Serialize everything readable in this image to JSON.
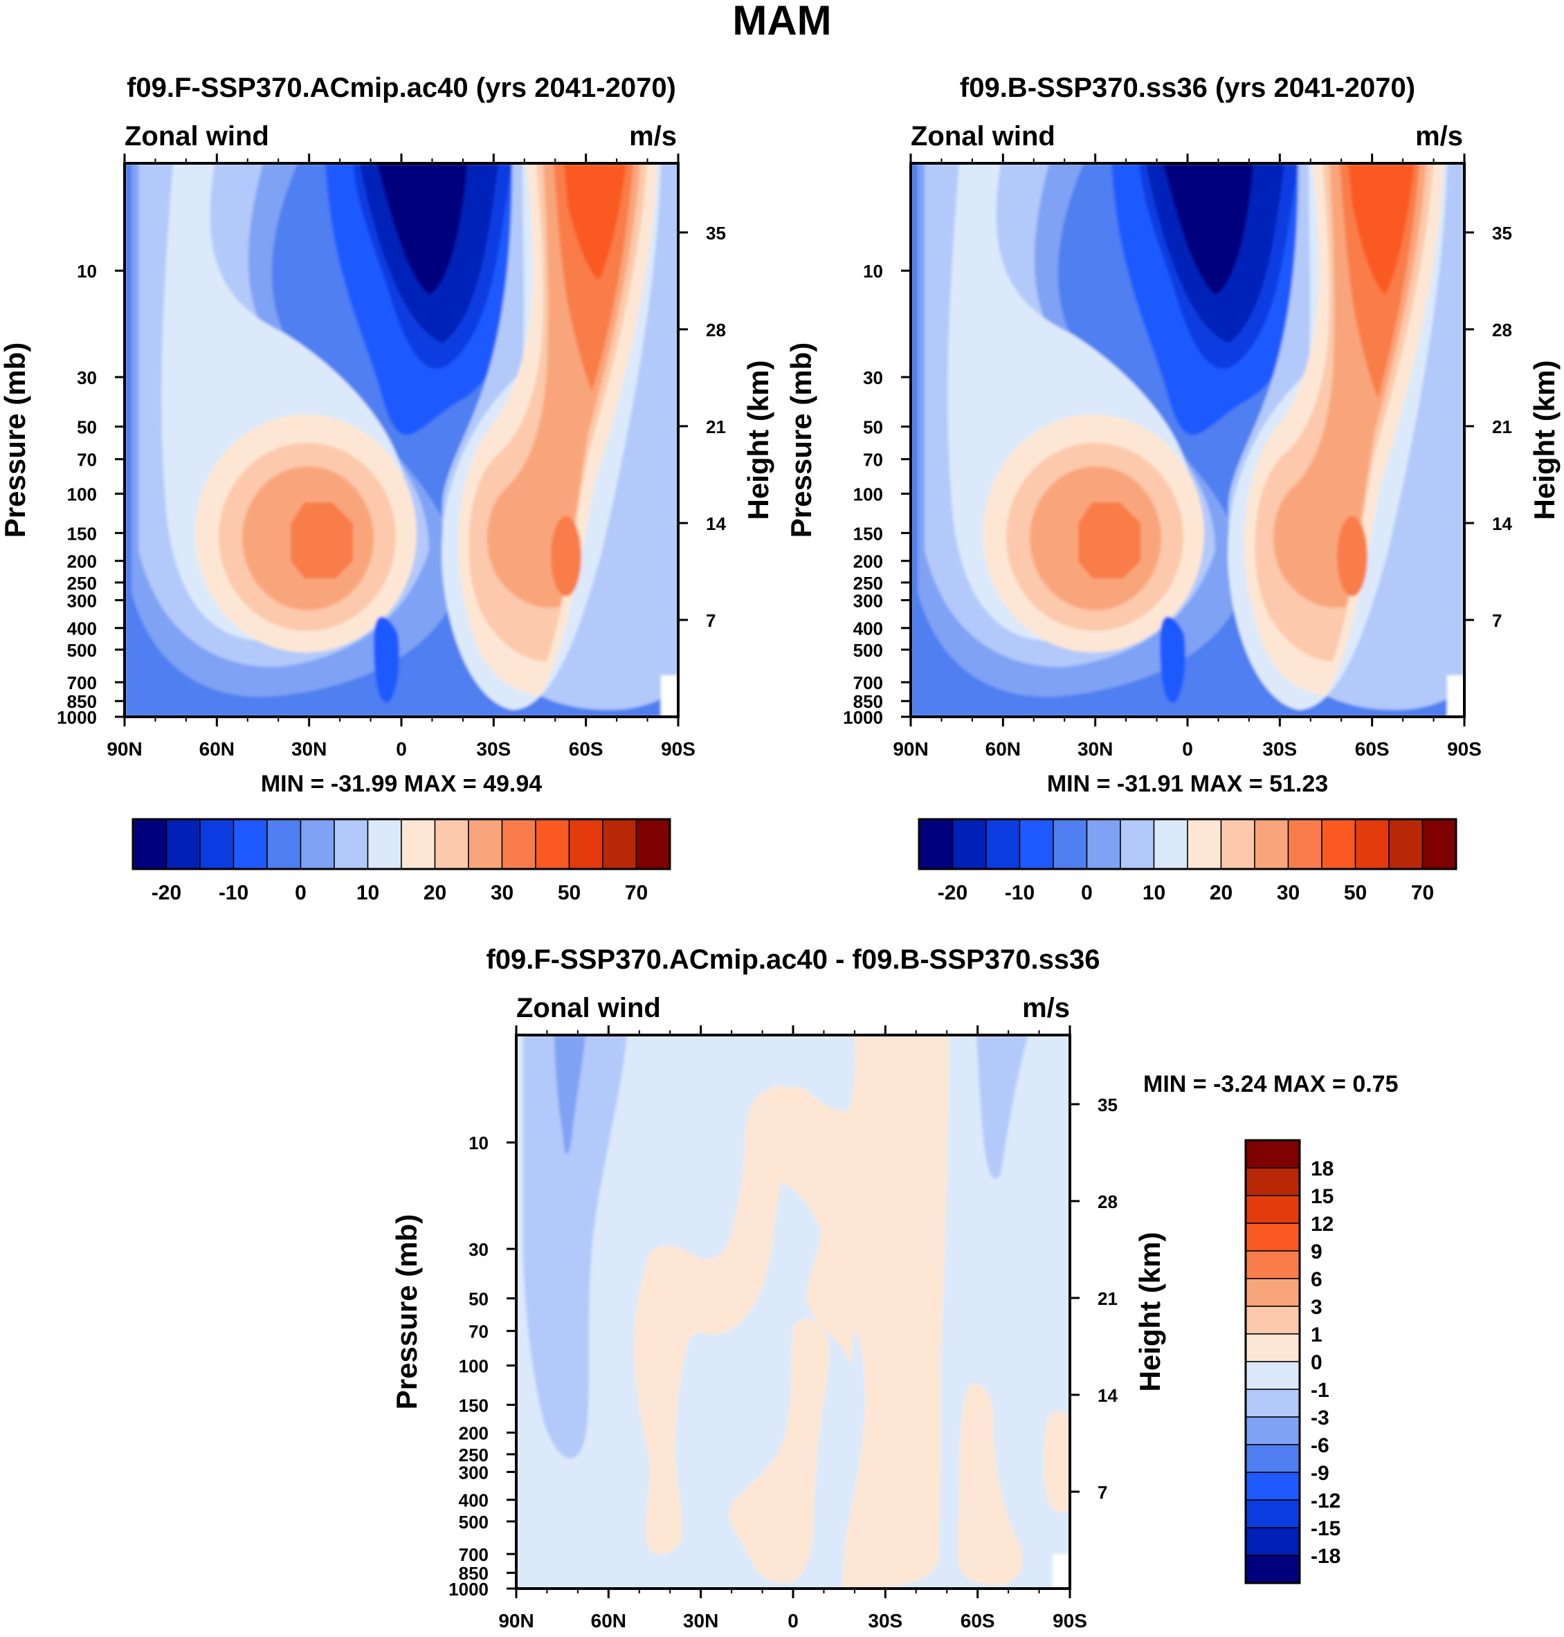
{
  "figure_title": "MAM",
  "chart_data": [
    {
      "type": "contour",
      "title": "f09.F-SSP370.ACmip.ac40 (yrs 2041-2070)",
      "left_label": "Zonal wind",
      "right_label": "m/s",
      "xlabel": "",
      "ylabel": "Pressure (mb)",
      "ylabel_right": "Height (km)",
      "x_ticks": [
        "90N",
        "60N",
        "30N",
        "0",
        "30S",
        "60S",
        "90S"
      ],
      "x_tick_values": [
        90,
        60,
        30,
        0,
        -30,
        -60,
        -90
      ],
      "y_ticks": [
        "10",
        "30",
        "50",
        "70",
        "100",
        "150",
        "200",
        "250",
        "300",
        "400",
        "500",
        "700",
        "850",
        "1000"
      ],
      "y_tick_values": [
        10,
        30,
        50,
        70,
        100,
        150,
        200,
        250,
        300,
        400,
        500,
        700,
        850,
        1000
      ],
      "ylim": [
        3.3,
        1000
      ],
      "y2_ticks": [
        "7",
        "14",
        "21",
        "28",
        "35"
      ],
      "y2_tick_values": [
        7,
        14,
        21,
        28,
        35
      ],
      "stats_text": "MIN = -31.99  MAX =  49.94",
      "colorbar_labels": [
        "-20",
        "-10",
        "0",
        "10",
        "20",
        "30",
        "50",
        "70"
      ],
      "contour_levels": [
        -25,
        -20,
        -15,
        -10,
        -5,
        0,
        5,
        10,
        15,
        20,
        25,
        30,
        40,
        50,
        60,
        70
      ]
    },
    {
      "type": "contour",
      "title": "f09.B-SSP370.ss36 (yrs 2041-2070)",
      "left_label": "Zonal wind",
      "right_label": "m/s",
      "xlabel": "",
      "ylabel": "Pressure (mb)",
      "ylabel_right": "Height (km)",
      "x_ticks": [
        "90N",
        "60N",
        "30N",
        "0",
        "30S",
        "60S",
        "90S"
      ],
      "x_tick_values": [
        90,
        60,
        30,
        0,
        -30,
        -60,
        -90
      ],
      "y_ticks": [
        "10",
        "30",
        "50",
        "70",
        "100",
        "150",
        "200",
        "250",
        "300",
        "400",
        "500",
        "700",
        "850",
        "1000"
      ],
      "y_tick_values": [
        10,
        30,
        50,
        70,
        100,
        150,
        200,
        250,
        300,
        400,
        500,
        700,
        850,
        1000
      ],
      "ylim": [
        3.3,
        1000
      ],
      "y2_ticks": [
        "7",
        "14",
        "21",
        "28",
        "35"
      ],
      "y2_tick_values": [
        7,
        14,
        21,
        28,
        35
      ],
      "stats_text": "MIN = -31.91  MAX =  51.23",
      "colorbar_labels": [
        "-20",
        "-10",
        "0",
        "10",
        "20",
        "30",
        "50",
        "70"
      ],
      "contour_levels": [
        -25,
        -20,
        -15,
        -10,
        -5,
        0,
        5,
        10,
        15,
        20,
        25,
        30,
        40,
        50,
        60,
        70
      ]
    },
    {
      "type": "contour",
      "title": "f09.F-SSP370.ACmip.ac40 - f09.B-SSP370.ss36",
      "left_label": "Zonal wind",
      "right_label": "m/s",
      "xlabel": "",
      "ylabel": "Pressure (mb)",
      "ylabel_right": "Height (km)",
      "x_ticks": [
        "90N",
        "60N",
        "30N",
        "0",
        "30S",
        "60S",
        "90S"
      ],
      "x_tick_values": [
        90,
        60,
        30,
        0,
        -30,
        -60,
        -90
      ],
      "y_ticks": [
        "10",
        "30",
        "50",
        "70",
        "100",
        "150",
        "200",
        "250",
        "300",
        "400",
        "500",
        "700",
        "850",
        "1000"
      ],
      "y_tick_values": [
        10,
        30,
        50,
        70,
        100,
        150,
        200,
        250,
        300,
        400,
        500,
        700,
        850,
        1000
      ],
      "ylim": [
        3.3,
        1000
      ],
      "y2_ticks": [
        "7",
        "14",
        "21",
        "28",
        "35"
      ],
      "y2_tick_values": [
        7,
        14,
        21,
        28,
        35
      ],
      "stats_text": "MIN =  -3.24  MAX =    0.75",
      "colorbar_labels": [
        "18",
        "15",
        "12",
        "9",
        "6",
        "3",
        "1",
        "0",
        "-1",
        "-3",
        "-6",
        "-9",
        "-12",
        "-15",
        "-18"
      ],
      "contour_levels": [
        -18,
        -15,
        -12,
        -9,
        -6,
        -3,
        -1,
        0,
        1,
        3,
        6,
        9,
        12,
        15,
        18
      ]
    }
  ],
  "colors": {
    "wind_scale": [
      "#00007f",
      "#0020b8",
      "#0a3ce0",
      "#1e5aff",
      "#4f7ff0",
      "#7fa2f5",
      "#b2c9fa",
      "#dce9fb",
      "#fde7d4",
      "#fcc9ac",
      "#f9a57c",
      "#f97d4a",
      "#fa5a22",
      "#e33b0b",
      "#b82807",
      "#7f0000"
    ],
    "diff_scale_top_to_bottom": [
      "#7f0000",
      "#b82807",
      "#e33b0b",
      "#fa5a22",
      "#f97d4a",
      "#f9a57c",
      "#fcc9ac",
      "#fde7d4",
      "#dce9fb",
      "#b2c9fa",
      "#7fa2f5",
      "#4f7ff0",
      "#1e5aff",
      "#0a3ce0",
      "#0020b8",
      "#00007f"
    ]
  }
}
